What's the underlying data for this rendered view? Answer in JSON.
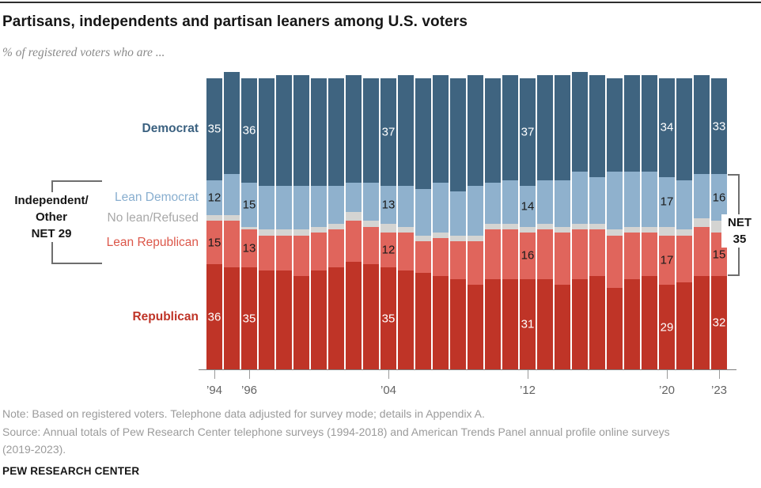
{
  "header": {
    "title": "Partisans, independents and partisan leaners among U.S. voters",
    "subtitle": "% of registered voters who are ..."
  },
  "chart_data": {
    "type": "bar",
    "stacked": true,
    "title": "Partisans, independents and partisan leaners among U.S. voters",
    "subtitle": "% of registered voters who are ...",
    "unit": "% of registered voters",
    "x": [
      1994,
      1995,
      1996,
      1997,
      1998,
      1999,
      2000,
      2001,
      2002,
      2003,
      2004,
      2005,
      2006,
      2007,
      2008,
      2009,
      2010,
      2011,
      2012,
      2013,
      2014,
      2015,
      2016,
      2017,
      2018,
      2019,
      2020,
      2021,
      2022,
      2023
    ],
    "series": [
      {
        "key": "democrat",
        "name": "Democrat",
        "color": "#3f6480",
        "label_color": "#3b6180",
        "label_bold": true,
        "values": [
          35,
          35,
          36,
          37,
          38,
          38,
          37,
          37,
          37,
          36,
          37,
          38,
          38,
          37,
          39,
          38,
          36,
          36,
          37,
          36,
          36,
          34,
          35,
          32,
          33,
          33,
          34,
          35,
          34,
          33
        ]
      },
      {
        "key": "lean_democrat",
        "name": "Lean Democrat",
        "color": "#8fb1cd",
        "label_color": "#88aecf",
        "label_bold": false,
        "values": [
          12,
          14,
          15,
          15,
          15,
          15,
          14,
          13,
          10,
          13,
          13,
          14,
          16,
          17,
          15,
          17,
          14,
          15,
          14,
          15,
          16,
          18,
          16,
          20,
          19,
          19,
          17,
          17,
          15,
          16
        ]
      },
      {
        "key": "no_lean",
        "name": "No lean/Refused",
        "color": "#d4d4d2",
        "label_color": "#a8a8a8",
        "label_bold": false,
        "values": [
          2,
          2,
          1,
          2,
          2,
          2,
          2,
          2,
          3,
          2,
          3,
          2,
          2,
          2,
          2,
          2,
          2,
          2,
          2,
          2,
          2,
          2,
          2,
          2,
          2,
          2,
          3,
          2,
          3,
          4
        ]
      },
      {
        "key": "lean_republican",
        "name": "Lean Republican",
        "color": "#e0655c",
        "label_color": "#dc574a",
        "label_bold": false,
        "values": [
          15,
          16,
          13,
          12,
          12,
          14,
          13,
          13,
          14,
          13,
          12,
          13,
          11,
          13,
          13,
          15,
          17,
          17,
          16,
          17,
          18,
          17,
          16,
          18,
          16,
          15,
          17,
          16,
          17,
          15
        ]
      },
      {
        "key": "republican",
        "name": "Republican",
        "color": "#bf3427",
        "label_color": "#bf3427",
        "label_bold": true,
        "values": [
          36,
          35,
          35,
          34,
          34,
          32,
          34,
          35,
          37,
          36,
          35,
          34,
          33,
          32,
          31,
          29,
          31,
          31,
          31,
          31,
          29,
          31,
          32,
          28,
          31,
          32,
          29,
          30,
          32,
          32
        ]
      }
    ],
    "labeled_years": [
      1994,
      1996,
      2004,
      2012,
      2020,
      2023
    ],
    "x_axis": {
      "tick_years": [
        1994,
        1996,
        2004,
        2012,
        2020,
        2023
      ],
      "tick_labels": [
        "’94",
        "’96",
        "’04",
        "’12",
        "’20",
        "’23"
      ]
    },
    "annotations": {
      "left_bracket": {
        "year": 1994,
        "lines": [
          "Independent/",
          "Other",
          "NET 29"
        ],
        "net_value": 29
      },
      "right_bracket": {
        "year": 2023,
        "lines": [
          "NET",
          "35"
        ],
        "net_value": 35
      }
    },
    "value_label_colors": {
      "dark_segment": "#ffffff",
      "light_segment": "#1a1a1a"
    },
    "legend_position": "left",
    "grid": false,
    "ylim": [
      0,
      102
    ]
  },
  "footer": {
    "note": "Note: Based on registered voters. Telephone data adjusted for survey mode; details in Appendix A.",
    "source_line1": "Source: Annual totals of Pew Research Center telephone surveys (1994-2018) and American Trends Panel annual profile online surveys",
    "source_line2": "(2019-2023).",
    "brand": "PEW RESEARCH CENTER"
  }
}
